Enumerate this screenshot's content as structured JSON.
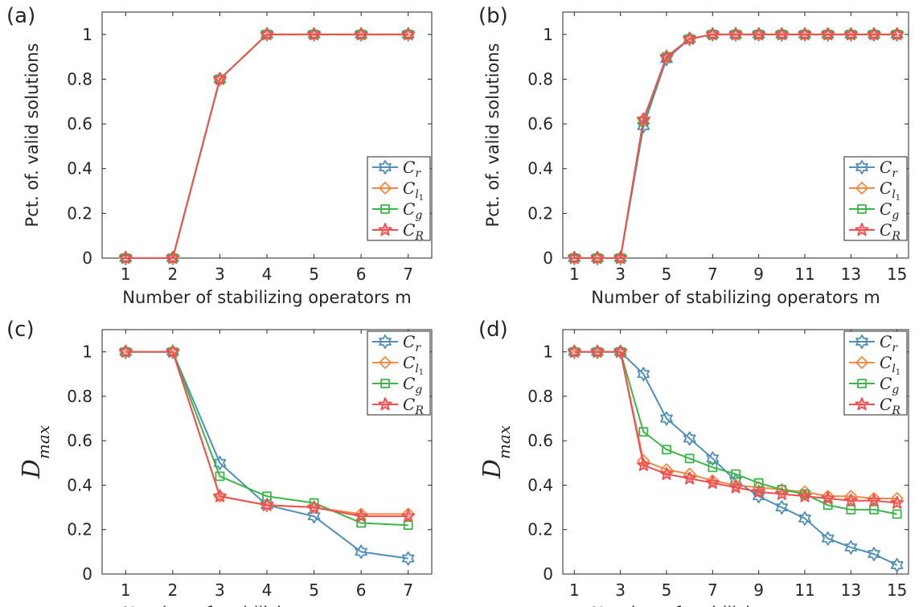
{
  "series_styles": [
    {
      "key": "Cr",
      "color": "#4f8fba",
      "marker": "hexagram"
    },
    {
      "key": "Cl1",
      "color": "#f08a45",
      "marker": "diamond"
    },
    {
      "key": "Cg",
      "color": "#3db54a",
      "marker": "square"
    },
    {
      "key": "CR",
      "color": "#ee5050",
      "marker": "star"
    }
  ],
  "legend_labels": [
    "C",
    "C",
    "C",
    "C"
  ],
  "legend_subscripts": [
    "r",
    "l",
    "g",
    "R"
  ],
  "legend_subsub": [
    "",
    "1",
    "",
    ""
  ],
  "chart_data": [
    {
      "panel": "(a)",
      "type": "line",
      "xlabel": "Number of stabilizing operators m",
      "ylabel": "Pct. of. valid solutions",
      "ylabel_math": false,
      "xlim": [
        0.5,
        7.5
      ],
      "ylim": [
        0,
        1.1
      ],
      "xticks": [
        1,
        2,
        3,
        4,
        5,
        6,
        7
      ],
      "yticks": [
        0,
        0.2,
        0.4,
        0.6,
        0.8,
        1
      ],
      "ytick_labels": [
        "0",
        "0.2",
        "0.4",
        "0.6",
        "0.8",
        "1"
      ],
      "legend_position": "bottom-right",
      "x": [
        1,
        2,
        3,
        4,
        5,
        6,
        7
      ],
      "series": [
        {
          "values": [
            0,
            0,
            0.8,
            1,
            1,
            1,
            1
          ]
        },
        {
          "values": [
            0,
            0,
            0.8,
            1,
            1,
            1,
            1
          ]
        },
        {
          "values": [
            0,
            0,
            0.8,
            1,
            1,
            1,
            1
          ]
        },
        {
          "values": [
            0,
            0,
            0.8,
            1,
            1,
            1,
            1
          ]
        }
      ]
    },
    {
      "panel": "(b)",
      "type": "line",
      "xlabel": "Number of stabilizing operators m",
      "ylabel": "Pct. of. valid solutions",
      "ylabel_math": false,
      "xlim": [
        0.5,
        15.5
      ],
      "ylim": [
        0,
        1.1
      ],
      "xticks": [
        1,
        3,
        5,
        7,
        9,
        11,
        13,
        15
      ],
      "yticks": [
        0,
        0.2,
        0.4,
        0.6,
        0.8,
        1
      ],
      "ytick_labels": [
        "0",
        "0.2",
        "0.4",
        "0.6",
        "0.8",
        "1"
      ],
      "legend_position": "bottom-right",
      "x": [
        1,
        2,
        3,
        4,
        5,
        6,
        7,
        8,
        9,
        10,
        11,
        12,
        13,
        14,
        15
      ],
      "series": [
        {
          "values": [
            0,
            0,
            0,
            0.59,
            0.89,
            0.98,
            1,
            1,
            1,
            1,
            1,
            1,
            1,
            1,
            1
          ]
        },
        {
          "values": [
            0,
            0,
            0,
            0.62,
            0.9,
            0.98,
            1,
            1,
            1,
            1,
            1,
            1,
            1,
            1,
            1
          ]
        },
        {
          "values": [
            0,
            0,
            0,
            0.61,
            0.9,
            0.98,
            1,
            1,
            1,
            1,
            1,
            1,
            1,
            1,
            1
          ]
        },
        {
          "values": [
            0,
            0,
            0,
            0.62,
            0.9,
            0.98,
            1,
            1,
            1,
            1,
            1,
            1,
            1,
            1,
            1
          ]
        }
      ]
    },
    {
      "panel": "(c)",
      "type": "line",
      "xlabel": "Number of stabilizing operators m",
      "ylabel": "D",
      "ylabel_sub": "max",
      "ylabel_math": true,
      "xlim": [
        0.5,
        7.5
      ],
      "ylim": [
        0,
        1.1
      ],
      "xticks": [
        1,
        2,
        3,
        4,
        5,
        6,
        7
      ],
      "yticks": [
        0,
        0.2,
        0.4,
        0.6,
        0.8,
        1
      ],
      "ytick_labels": [
        "0",
        "0.2",
        "0.4",
        "0.6",
        "0.8",
        "1"
      ],
      "legend_position": "top-right",
      "x": [
        1,
        2,
        3,
        4,
        5,
        6,
        7
      ],
      "series": [
        {
          "values": [
            1,
            1,
            0.5,
            0.31,
            0.26,
            0.1,
            0.07
          ]
        },
        {
          "values": [
            1,
            1,
            0.35,
            0.31,
            0.3,
            0.27,
            0.27
          ]
        },
        {
          "values": [
            1,
            1,
            0.44,
            0.35,
            0.32,
            0.23,
            0.22
          ]
        },
        {
          "values": [
            1,
            1,
            0.35,
            0.31,
            0.3,
            0.26,
            0.26
          ]
        }
      ]
    },
    {
      "panel": "(d)",
      "type": "line",
      "xlabel": "Number of stabilizing operators m",
      "ylabel": "D",
      "ylabel_sub": "max",
      "ylabel_math": true,
      "xlim": [
        0.5,
        15.5
      ],
      "ylim": [
        0,
        1.1
      ],
      "xticks": [
        1,
        3,
        5,
        7,
        9,
        11,
        13,
        15
      ],
      "yticks": [
        0,
        0.2,
        0.4,
        0.6,
        0.8,
        1
      ],
      "ytick_labels": [
        "0",
        "0.2",
        "0.4",
        "0.6",
        "0.8",
        "1"
      ],
      "legend_position": "top-right",
      "x": [
        1,
        2,
        3,
        4,
        5,
        6,
        7,
        8,
        9,
        10,
        11,
        12,
        13,
        14,
        15
      ],
      "series": [
        {
          "values": [
            1,
            1,
            1,
            0.9,
            0.7,
            0.61,
            0.52,
            0.42,
            0.35,
            0.3,
            0.25,
            0.16,
            0.12,
            0.09,
            0.04
          ]
        },
        {
          "values": [
            1,
            1,
            1,
            0.51,
            0.47,
            0.45,
            0.42,
            0.4,
            0.39,
            0.38,
            0.37,
            0.35,
            0.35,
            0.34,
            0.34
          ]
        },
        {
          "values": [
            1,
            1,
            1,
            0.64,
            0.56,
            0.52,
            0.48,
            0.45,
            0.41,
            0.38,
            0.36,
            0.31,
            0.29,
            0.29,
            0.27
          ]
        },
        {
          "values": [
            1,
            1,
            1,
            0.49,
            0.45,
            0.43,
            0.41,
            0.39,
            0.37,
            0.36,
            0.35,
            0.34,
            0.33,
            0.33,
            0.32
          ]
        }
      ]
    }
  ]
}
